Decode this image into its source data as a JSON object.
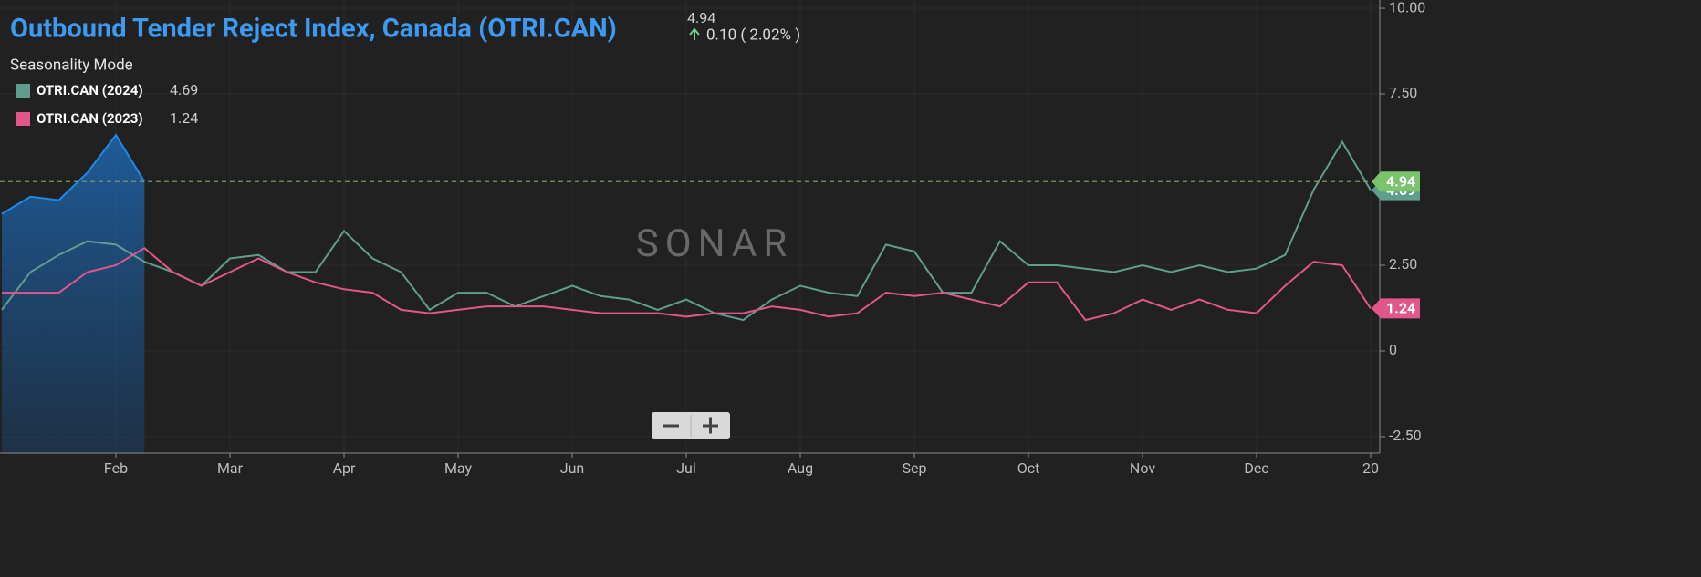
{
  "chart_data": {
    "type": "line",
    "title": "Outbound Tender Reject Index, Canada (OTRI.CAN)",
    "change": "0.10 ( 2.02% )",
    "mode": "Seasonality Mode",
    "watermark": "SONAR",
    "categories": [
      null,
      null,
      null,
      null,
      "Feb",
      null,
      null,
      null,
      "Mar",
      null,
      null,
      null,
      "Apr",
      null,
      null,
      null,
      "May",
      null,
      null,
      null,
      "Jun",
      null,
      null,
      null,
      "Jul",
      null,
      null,
      null,
      "Aug",
      null,
      null,
      null,
      "Sep",
      null,
      null,
      null,
      "Oct",
      null,
      null,
      null,
      "Nov",
      null,
      null,
      null,
      "Dec",
      null,
      null,
      null,
      "20"
    ],
    "series": [
      {
        "color": "#1e8ae8",
        "area": true,
        "values": [
          4.0,
          4.5,
          4.4,
          5.2,
          6.3,
          4.94,
          null,
          null,
          null,
          null,
          null,
          null,
          null,
          null,
          null,
          null,
          null,
          null,
          null,
          null,
          null,
          null,
          null,
          null,
          null,
          null,
          null,
          null,
          null,
          null,
          null,
          null,
          null,
          null,
          null,
          null,
          null,
          null,
          null,
          null,
          null,
          null,
          null,
          null,
          null,
          null,
          null,
          null,
          null
        ]
      },
      {
        "name": "OTRI.CAN (2024)",
        "color": "#5f9e8f",
        "values": [
          1.2,
          2.3,
          2.8,
          3.2,
          3.1,
          2.6,
          2.3,
          1.9,
          2.7,
          2.8,
          2.3,
          2.3,
          3.5,
          2.7,
          2.3,
          1.2,
          1.7,
          1.7,
          1.3,
          1.6,
          1.9,
          1.6,
          1.5,
          1.2,
          1.5,
          1.1,
          0.9,
          1.5,
          1.9,
          1.7,
          1.6,
          3.1,
          2.9,
          1.7,
          1.7,
          3.2,
          2.5,
          2.5,
          2.4,
          2.3,
          2.5,
          2.3,
          2.5,
          2.3,
          2.4,
          2.8,
          4.7,
          6.1,
          4.69
        ]
      },
      {
        "name": "OTRI.CAN (2023)",
        "color": "#e2578a",
        "values": [
          1.7,
          1.7,
          1.7,
          2.3,
          2.5,
          3.0,
          2.3,
          1.9,
          2.3,
          2.7,
          2.3,
          2.0,
          1.8,
          1.7,
          1.2,
          1.1,
          1.2,
          1.3,
          1.3,
          1.3,
          1.2,
          1.1,
          1.1,
          1.1,
          1.0,
          1.1,
          1.1,
          1.3,
          1.2,
          1.0,
          1.1,
          1.7,
          1.6,
          1.7,
          1.5,
          1.3,
          2.0,
          2.0,
          0.9,
          1.1,
          1.5,
          1.2,
          1.5,
          1.2,
          1.1,
          1.9,
          2.6,
          2.5,
          1.24
        ]
      }
    ],
    "ylim": [
      -2.98,
      10.24
    ],
    "yticks": [
      {
        "value": 10,
        "label": "10.00"
      },
      {
        "value": 7.5,
        "label": "7.50"
      },
      {
        "value": 2.5,
        "label": "2.50"
      },
      0,
      {
        "value": -2.5,
        "label": "-2.50"
      }
    ],
    "grid": true
  }
}
